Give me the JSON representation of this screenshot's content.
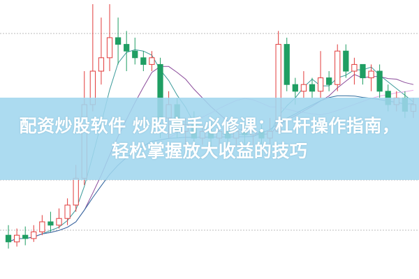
{
  "headline": {
    "line1": "配资炒股软件 炒股高手必修课：杠杆操作指南，",
    "line2": "轻松掌握放大收益的技巧"
  },
  "colors": {
    "up": "#e23b3b",
    "down": "#1f9e63",
    "ma_short": "#3a9a9a",
    "ma_mid": "#8a4a9a",
    "ma_long": "#e6a6e6",
    "ma_longest": "#2d6c9e",
    "banner": "#a0d6ee",
    "grid": "#bbbbbb"
  },
  "chart_data": {
    "type": "candlestick",
    "grid": true,
    "candles": [
      [
        5.5,
        4.5,
        7,
        3.5
      ],
      [
        4.5,
        5.5,
        6.5,
        3.8
      ],
      [
        5.5,
        5,
        6.8,
        4
      ],
      [
        5,
        6,
        7,
        4.5
      ],
      [
        6,
        7.5,
        8.5,
        5.5
      ],
      [
        7.5,
        7,
        9,
        6
      ],
      [
        7,
        8,
        9.5,
        6.5
      ],
      [
        8,
        10,
        11,
        7
      ],
      [
        10,
        14,
        16,
        9
      ],
      [
        14,
        25,
        30,
        13
      ],
      [
        25,
        30,
        40,
        24
      ],
      [
        30,
        32,
        38,
        28
      ],
      [
        32,
        35,
        40,
        30
      ],
      [
        35,
        34,
        38,
        31
      ],
      [
        34,
        33,
        36,
        30
      ],
      [
        33,
        32,
        35,
        31
      ],
      [
        32,
        31,
        33,
        30
      ],
      [
        31,
        32,
        33,
        30
      ],
      [
        31,
        23,
        32,
        20
      ],
      [
        23,
        25,
        27,
        20
      ],
      [
        25,
        21,
        26,
        20
      ],
      [
        21,
        22,
        23,
        19
      ],
      [
        22,
        20,
        24,
        18
      ],
      [
        20,
        21,
        22,
        19
      ],
      [
        21,
        20,
        22,
        18
      ],
      [
        20,
        21,
        22,
        19
      ],
      [
        21,
        20,
        22,
        19
      ],
      [
        20,
        21,
        22,
        19
      ],
      [
        21,
        20.5,
        22,
        19
      ],
      [
        20.5,
        21,
        22,
        19
      ],
      [
        21,
        20,
        22,
        19
      ],
      [
        20,
        21,
        23,
        19
      ],
      [
        21,
        34,
        36,
        21
      ],
      [
        34,
        28,
        35,
        27
      ],
      [
        28,
        27,
        29,
        25
      ],
      [
        27,
        28,
        30,
        26
      ],
      [
        28,
        27,
        29,
        26
      ],
      [
        27,
        29,
        33,
        26
      ],
      [
        29,
        28,
        30,
        27
      ],
      [
        28,
        33,
        34,
        27
      ],
      [
        33,
        30,
        34,
        29
      ],
      [
        30,
        31,
        32,
        28
      ],
      [
        31,
        29,
        31,
        28
      ],
      [
        29,
        30,
        31,
        27
      ],
      [
        30,
        27,
        31,
        26
      ],
      [
        27,
        25,
        28,
        24
      ],
      [
        25,
        26,
        27,
        24
      ],
      [
        26,
        24,
        27,
        23
      ],
      [
        24,
        25,
        26,
        23
      ]
    ],
    "moving_averages": [
      5,
      10,
      20,
      30
    ]
  }
}
